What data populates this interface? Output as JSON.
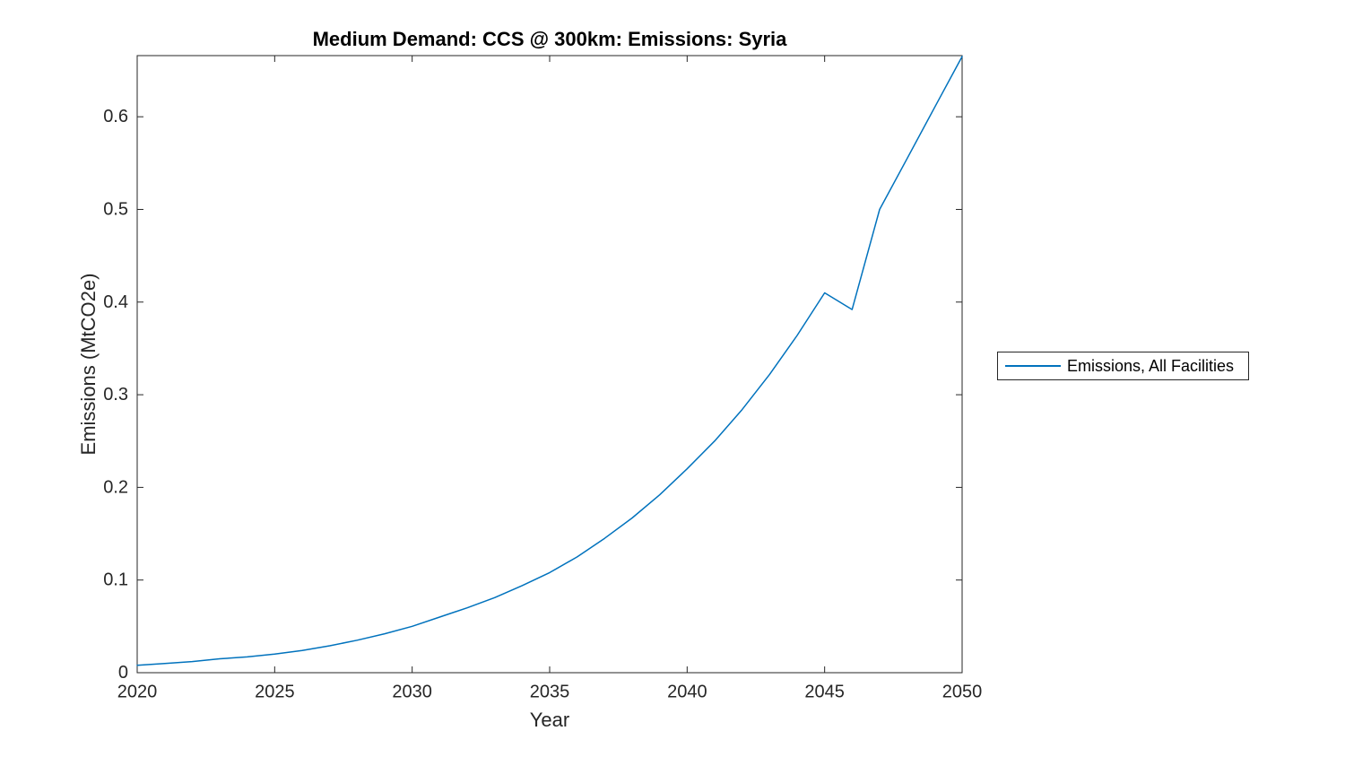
{
  "figure": {
    "title": "Medium Demand: CCS @ 300km: Emissions: Syria",
    "xlabel": "Year",
    "ylabel": "Emissions (MtCO2e)",
    "background": "#ffffff"
  },
  "legend": {
    "entries": [
      {
        "label": "Emissions, All Facilities",
        "color": "#0072BD"
      }
    ]
  },
  "chart_data": {
    "type": "line",
    "title": "Medium Demand: CCS @ 300km: Emissions: Syria",
    "xlabel": "Year",
    "ylabel": "Emissions (MtCO2e)",
    "xlim": [
      2020,
      2050
    ],
    "ylim": [
      0,
      0.666
    ],
    "xticks": [
      2020,
      2025,
      2030,
      2035,
      2040,
      2045,
      2050
    ],
    "yticks": [
      0,
      0.1,
      0.2,
      0.3,
      0.4,
      0.5,
      0.6
    ],
    "grid": false,
    "legend_position": "right-outside",
    "line_color": "#0072BD",
    "axis_color": "#262626",
    "series": [
      {
        "name": "Emissions, All Facilities",
        "x": [
          2020,
          2021,
          2022,
          2023,
          2024,
          2025,
          2026,
          2027,
          2028,
          2029,
          2030,
          2031,
          2032,
          2033,
          2034,
          2035,
          2036,
          2037,
          2038,
          2039,
          2040,
          2041,
          2042,
          2043,
          2044,
          2045,
          2046,
          2047,
          2048,
          2049,
          2050
        ],
        "values": [
          0.008,
          0.01,
          0.012,
          0.015,
          0.017,
          0.02,
          0.024,
          0.029,
          0.035,
          0.042,
          0.05,
          0.06,
          0.07,
          0.081,
          0.094,
          0.108,
          0.125,
          0.145,
          0.167,
          0.192,
          0.22,
          0.25,
          0.284,
          0.322,
          0.364,
          0.41,
          0.392,
          0.5,
          0.555,
          0.61,
          0.665
        ]
      }
    ]
  }
}
